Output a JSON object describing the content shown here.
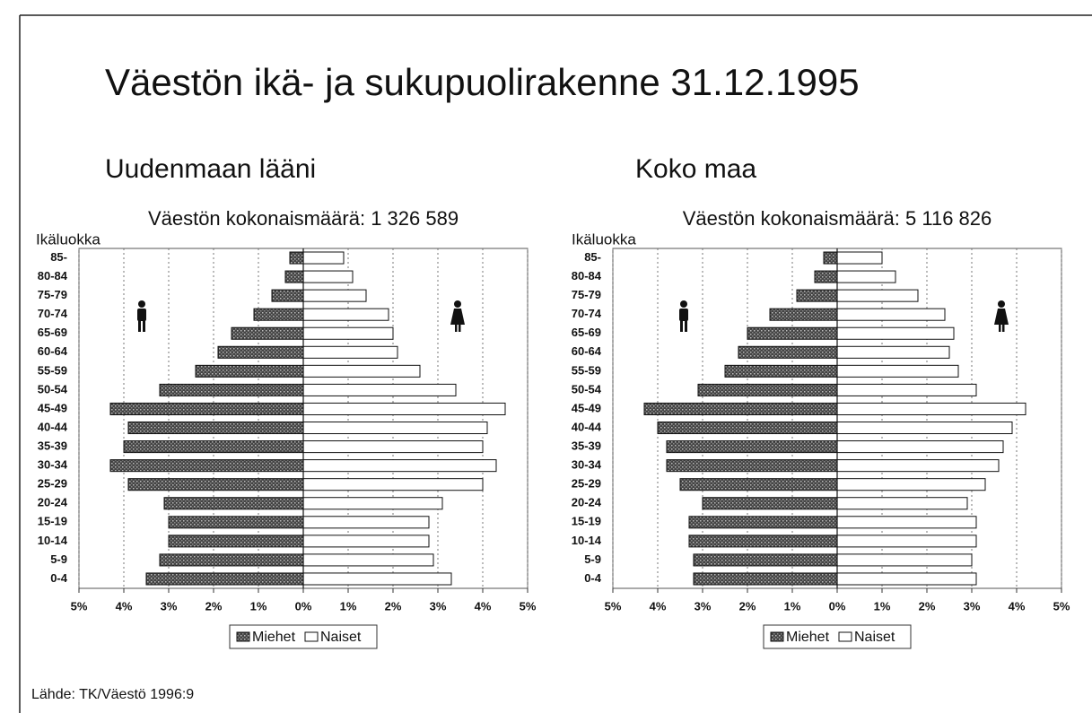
{
  "title": "Väestön ikä- ja sukupuolirakenne 31.12.1995",
  "source": "Lähde: TK/Väestö 1996:9",
  "chart_data": [
    {
      "type": "pyramid",
      "title": "Uudenmaan lääni",
      "subtitle": "Väestön kokonaismäärä: 1 326 589",
      "y_label": "Ikäluokka",
      "categories": [
        "85-",
        "80-84",
        "75-79",
        "70-74",
        "65-69",
        "60-64",
        "55-59",
        "50-54",
        "45-49",
        "40-44",
        "35-39",
        "30-34",
        "25-29",
        "20-24",
        "15-19",
        "10-14",
        "5-9",
        "0-4"
      ],
      "series": [
        {
          "name": "Miehet",
          "color": "#555555",
          "side": "left",
          "values": [
            0.3,
            0.4,
            0.7,
            1.1,
            1.6,
            1.9,
            2.4,
            3.2,
            4.3,
            3.9,
            4.0,
            4.3,
            3.9,
            3.1,
            3.0,
            3.0,
            3.2,
            3.5
          ]
        },
        {
          "name": "Naiset",
          "color": "#ffffff",
          "side": "right",
          "values": [
            0.9,
            1.1,
            1.4,
            1.9,
            2.0,
            2.1,
            2.6,
            3.4,
            4.5,
            4.1,
            4.0,
            4.3,
            4.0,
            3.1,
            2.8,
            2.8,
            2.9,
            3.3
          ]
        }
      ],
      "xlim": [
        -5,
        5
      ],
      "xticks": [
        {
          "value": -5,
          "label": "5%"
        },
        {
          "value": -4,
          "label": "4%"
        },
        {
          "value": -3,
          "label": "3%"
        },
        {
          "value": -2,
          "label": "2%"
        },
        {
          "value": -1,
          "label": "1%"
        },
        {
          "value": 0,
          "label": "0%"
        },
        {
          "value": 1,
          "label": "1%"
        },
        {
          "value": 2,
          "label": "2%"
        },
        {
          "value": 3,
          "label": "3%"
        },
        {
          "value": 4,
          "label": "4%"
        },
        {
          "value": 5,
          "label": "5%"
        }
      ],
      "grid": true,
      "legend": "bottom"
    },
    {
      "type": "pyramid",
      "title": "Koko maa",
      "subtitle": "Väestön kokonaismäärä: 5 116 826",
      "y_label": "Ikäluokka",
      "categories": [
        "85-",
        "80-84",
        "75-79",
        "70-74",
        "65-69",
        "60-64",
        "55-59",
        "50-54",
        "45-49",
        "40-44",
        "35-39",
        "30-34",
        "25-29",
        "20-24",
        "15-19",
        "10-14",
        "5-9",
        "0-4"
      ],
      "series": [
        {
          "name": "Miehet",
          "color": "#555555",
          "side": "left",
          "values": [
            0.3,
            0.5,
            0.9,
            1.5,
            2.0,
            2.2,
            2.5,
            3.1,
            4.3,
            4.0,
            3.8,
            3.8,
            3.5,
            3.0,
            3.3,
            3.3,
            3.2,
            3.2
          ]
        },
        {
          "name": "Naiset",
          "color": "#ffffff",
          "side": "right",
          "values": [
            1.0,
            1.3,
            1.8,
            2.4,
            2.6,
            2.5,
            2.7,
            3.1,
            4.2,
            3.9,
            3.7,
            3.6,
            3.3,
            2.9,
            3.1,
            3.1,
            3.0,
            3.1
          ]
        }
      ],
      "xlim": [
        -5,
        5
      ],
      "xticks": [
        {
          "value": -5,
          "label": "5%"
        },
        {
          "value": -4,
          "label": "4%"
        },
        {
          "value": -3,
          "label": "3%"
        },
        {
          "value": -2,
          "label": "2%"
        },
        {
          "value": -1,
          "label": "1%"
        },
        {
          "value": 0,
          "label": "0%"
        },
        {
          "value": 1,
          "label": "1%"
        },
        {
          "value": 2,
          "label": "2%"
        },
        {
          "value": 3,
          "label": "3%"
        },
        {
          "value": 4,
          "label": "4%"
        },
        {
          "value": 5,
          "label": "5%"
        }
      ],
      "grid": true,
      "legend": "bottom"
    }
  ]
}
